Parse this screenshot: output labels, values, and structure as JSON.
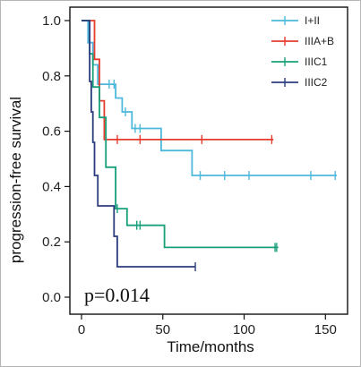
{
  "chart_data": {
    "type": "line",
    "subtype": "kaplan-meier",
    "title": "",
    "xlabel": "Time/months",
    "ylabel": "progression-free survival",
    "xlim": [
      0,
      160
    ],
    "ylim": [
      0,
      1.0
    ],
    "xticks": [
      0,
      50,
      100,
      150
    ],
    "xtick_labels": [
      "0",
      "50",
      "100",
      "150"
    ],
    "yticks": [
      0.0,
      0.2,
      0.4,
      0.6,
      0.8,
      1.0
    ],
    "ytick_labels": [
      "0.0",
      "0.2",
      "0.4",
      "0.6",
      "0.8",
      "1.0"
    ],
    "grid": false,
    "legend_position": "top-right",
    "annotation": "p=0.014",
    "series": [
      {
        "name": "I+II",
        "color": "#4db8dc",
        "steps": [
          [
            0,
            1.0
          ],
          [
            4,
            1.0
          ],
          [
            4,
            0.92
          ],
          [
            7,
            0.92
          ],
          [
            7,
            0.84
          ],
          [
            10,
            0.84
          ],
          [
            10,
            0.77
          ],
          [
            21,
            0.77
          ],
          [
            21,
            0.72
          ],
          [
            25,
            0.72
          ],
          [
            25,
            0.67
          ],
          [
            31,
            0.67
          ],
          [
            31,
            0.61
          ],
          [
            49,
            0.61
          ],
          [
            49,
            0.53
          ],
          [
            68,
            0.53
          ],
          [
            68,
            0.44
          ],
          [
            157,
            0.44
          ]
        ],
        "censored": [
          [
            17,
            0.77
          ],
          [
            20,
            0.77
          ],
          [
            27,
            0.67
          ],
          [
            33,
            0.61
          ],
          [
            36,
            0.61
          ],
          [
            73,
            0.44
          ],
          [
            88,
            0.44
          ],
          [
            103,
            0.44
          ],
          [
            141,
            0.44
          ],
          [
            156,
            0.44
          ]
        ]
      },
      {
        "name": "IIIA+B",
        "color": "#e53b2c",
        "steps": [
          [
            0,
            1.0
          ],
          [
            8,
            1.0
          ],
          [
            8,
            0.86
          ],
          [
            11,
            0.86
          ],
          [
            11,
            0.71
          ],
          [
            14,
            0.71
          ],
          [
            14,
            0.57
          ],
          [
            118,
            0.57
          ]
        ],
        "censored": [
          [
            22,
            0.57
          ],
          [
            36,
            0.57
          ],
          [
            74,
            0.57
          ],
          [
            117,
            0.57
          ]
        ]
      },
      {
        "name": "IIIC1",
        "color": "#18a07a",
        "steps": [
          [
            0,
            1.0
          ],
          [
            5,
            1.0
          ],
          [
            5,
            0.88
          ],
          [
            7,
            0.88
          ],
          [
            7,
            0.76
          ],
          [
            11,
            0.76
          ],
          [
            11,
            0.65
          ],
          [
            15,
            0.65
          ],
          [
            15,
            0.47
          ],
          [
            21,
            0.47
          ],
          [
            21,
            0.32
          ],
          [
            28,
            0.32
          ],
          [
            28,
            0.26
          ],
          [
            51,
            0.26
          ],
          [
            51,
            0.18
          ],
          [
            121,
            0.18
          ]
        ],
        "censored": [
          [
            22,
            0.32
          ],
          [
            34,
            0.26
          ],
          [
            36,
            0.26
          ],
          [
            119,
            0.18
          ],
          [
            120,
            0.18
          ]
        ]
      },
      {
        "name": "IIIC2",
        "color": "#2b3d7e",
        "steps": [
          [
            0,
            1.0
          ],
          [
            5,
            1.0
          ],
          [
            5,
            0.78
          ],
          [
            6,
            0.78
          ],
          [
            6,
            0.67
          ],
          [
            7,
            0.67
          ],
          [
            7,
            0.56
          ],
          [
            8,
            0.56
          ],
          [
            8,
            0.44
          ],
          [
            10,
            0.44
          ],
          [
            10,
            0.33
          ],
          [
            20,
            0.33
          ],
          [
            20,
            0.22
          ],
          [
            22,
            0.22
          ],
          [
            22,
            0.11
          ],
          [
            70,
            0.11
          ]
        ],
        "censored": [
          [
            70,
            0.11
          ]
        ]
      }
    ]
  }
}
